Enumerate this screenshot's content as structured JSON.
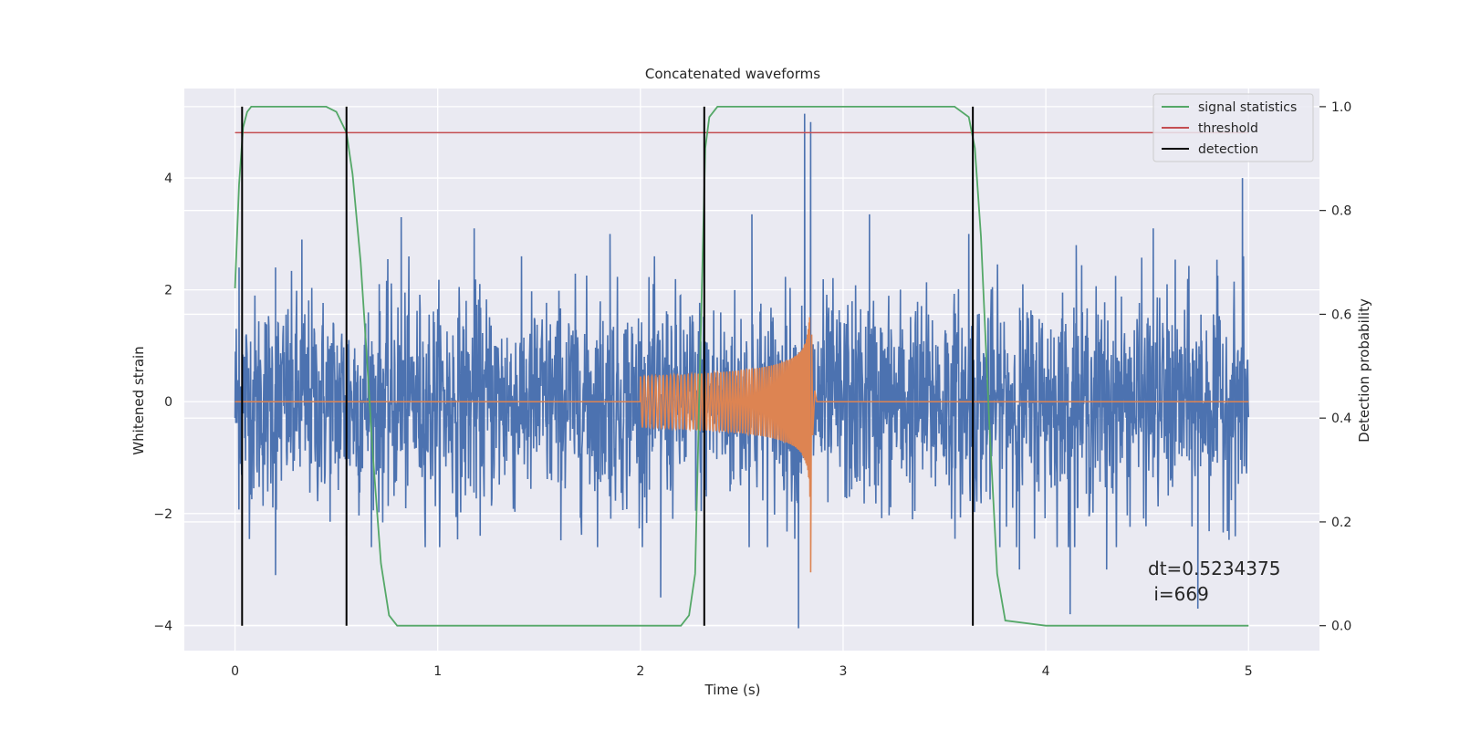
{
  "chart_data": {
    "type": "line",
    "title": "Concatenated waveforms",
    "xlabel": "Time (s)",
    "ylabel": "Whitened strain",
    "ylabel_right": "Detection probability",
    "xlim": [
      -0.25,
      5.35
    ],
    "ylim": [
      -4.45,
      5.6
    ],
    "ylim_right": [
      -0.048,
      1.035
    ],
    "xticks": [
      0,
      1,
      2,
      3,
      4,
      5
    ],
    "yticks": [
      -4,
      -2,
      0,
      2,
      4
    ],
    "yticks_right": [
      0.0,
      0.2,
      0.4,
      0.6,
      0.8,
      1.0
    ],
    "xtick_labels": [
      "0",
      "1",
      "2",
      "3",
      "4",
      "5"
    ],
    "ytick_labels": [
      "−4",
      "−2",
      "0",
      "2",
      "4"
    ],
    "ytick_right_labels": [
      "0.0",
      "0.2",
      "0.4",
      "0.6",
      "0.8",
      "1.0"
    ],
    "grid": true,
    "legend_position": "top-right",
    "colors": {
      "background": "#eaeaf2",
      "strain": "#4c72b0",
      "template": "#dd8452",
      "signal_statistics": "#55a868",
      "threshold": "#c44e52",
      "detection": "#000000"
    },
    "series": [
      {
        "name": "",
        "axis": "left",
        "description_type": "noise",
        "x_range": [
          0.0,
          5.0
        ],
        "amplitude_typical": 1.3,
        "amplitude_peak": 5.1,
        "notable_peaks": [
          {
            "x": 0.02,
            "y": 2.4
          },
          {
            "x": 0.2,
            "y": 2.4
          },
          {
            "x": 0.33,
            "y": 2.9
          },
          {
            "x": 0.82,
            "y": 3.3
          },
          {
            "x": 1.18,
            "y": 3.1
          },
          {
            "x": 1.85,
            "y": 3.0
          },
          {
            "x": 2.55,
            "y": 3.35
          },
          {
            "x": 2.81,
            "y": 5.15
          },
          {
            "x": 2.84,
            "y": 5.0
          },
          {
            "x": 3.13,
            "y": 3.35
          },
          {
            "x": 3.62,
            "y": 3.0
          },
          {
            "x": 4.97,
            "y": 4.0
          },
          {
            "x": 4.53,
            "y": 3.1
          },
          {
            "x": 4.15,
            "y": 2.8
          }
        ],
        "notable_troughs": [
          {
            "x": 0.2,
            "y": -3.1
          },
          {
            "x": 0.55,
            "y": -2.4
          },
          {
            "x": 2.1,
            "y": -3.5
          },
          {
            "x": 2.78,
            "y": -4.05
          },
          {
            "x": 3.87,
            "y": -3.0
          },
          {
            "x": 4.12,
            "y": -3.8
          },
          {
            "x": 4.3,
            "y": -3.0
          },
          {
            "x": 4.75,
            "y": -3.7
          }
        ]
      },
      {
        "name": "",
        "axis": "left",
        "description_type": "chirp",
        "x_range": [
          2.0,
          2.84
        ],
        "start_amplitude": 0.45,
        "peak_amplitude": 2.3,
        "min_value": -3.05,
        "peak_time": 2.84,
        "ringdown_end": 3.0
      },
      {
        "name": "signal statistics",
        "axis": "right",
        "x": [
          0.0,
          0.02,
          0.04,
          0.06,
          0.08,
          0.1,
          0.15,
          0.45,
          0.5,
          0.55,
          0.58,
          0.62,
          0.65,
          0.68,
          0.72,
          0.76,
          0.8,
          1.5,
          2.2,
          2.24,
          2.27,
          2.3,
          2.32,
          2.34,
          2.38,
          2.45,
          3.55,
          3.62,
          3.65,
          3.68,
          3.72,
          3.76,
          3.8,
          4.0,
          5.0
        ],
        "values": [
          0.65,
          0.85,
          0.96,
          0.99,
          1.0,
          1.0,
          1.0,
          1.0,
          0.99,
          0.95,
          0.87,
          0.7,
          0.52,
          0.33,
          0.12,
          0.02,
          0.0,
          0.0,
          0.0,
          0.02,
          0.1,
          0.6,
          0.92,
          0.98,
          1.0,
          1.0,
          1.0,
          0.98,
          0.92,
          0.75,
          0.4,
          0.1,
          0.01,
          0.0,
          0.0
        ]
      },
      {
        "name": "threshold",
        "axis": "right",
        "x": [
          0.0,
          5.0
        ],
        "values": [
          0.95,
          0.95
        ]
      },
      {
        "name": "detection",
        "axis": "right",
        "x_positions": [
          0.035,
          0.55,
          2.315,
          3.64
        ]
      }
    ],
    "annotations": [
      "dt=0.5234375",
      " i=669"
    ]
  }
}
